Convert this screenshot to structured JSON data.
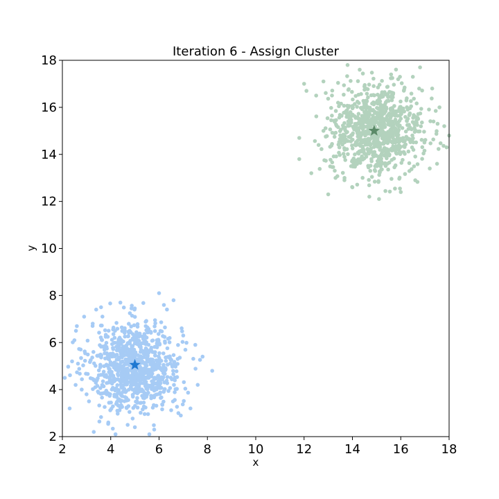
{
  "chart_data": {
    "type": "scatter",
    "title": "Iteration 6 - Assign Cluster",
    "xlabel": "x",
    "ylabel": "y",
    "xlim": [
      2,
      18
    ],
    "ylim": [
      2,
      18
    ],
    "xticks": [
      2,
      4,
      6,
      8,
      10,
      12,
      14,
      16,
      18
    ],
    "yticks": [
      2,
      4,
      6,
      8,
      10,
      12,
      14,
      16,
      18
    ],
    "grid": false,
    "legend": "none",
    "series": [
      {
        "color": "#a6cbf5",
        "center": [
          5,
          5
        ],
        "spread": 0.95,
        "count": 900,
        "centroid": [
          5.0,
          5.05
        ],
        "centroid_color": "#1f78d1",
        "points": [
          [
            2.1,
            4.5
          ],
          [
            2.3,
            3.2
          ],
          [
            2.4,
            5.2
          ],
          [
            2.5,
            6.1
          ],
          [
            2.6,
            6.7
          ],
          [
            2.9,
            7.1
          ],
          [
            3.1,
            3.5
          ],
          [
            3.3,
            2.2
          ],
          [
            3.4,
            7.4
          ],
          [
            3.6,
            7.5
          ],
          [
            3.9,
            2.6
          ],
          [
            4.2,
            2.1
          ],
          [
            4.4,
            7.7
          ],
          [
            5.0,
            2.4
          ],
          [
            5.6,
            2.1
          ],
          [
            6.0,
            8.1
          ],
          [
            6.2,
            7.6
          ],
          [
            6.6,
            7.8
          ],
          [
            7.5,
            5.9
          ],
          [
            7.8,
            5.4
          ],
          [
            8.2,
            4.8
          ],
          [
            7.3,
            3.2
          ],
          [
            6.8,
            3.0
          ],
          [
            7.0,
            6.3
          ],
          [
            7.6,
            4.2
          ],
          [
            3.0,
            3.8
          ],
          [
            2.8,
            4.0
          ],
          [
            6.9,
            2.9
          ],
          [
            4.7,
            2.5
          ],
          [
            5.8,
            2.3
          ]
        ]
      },
      {
        "color": "#b3d2bd",
        "center": [
          15,
          15
        ],
        "spread": 0.95,
        "count": 900,
        "centroid": [
          14.9,
          15.0
        ],
        "centroid_color": "#5b8a68",
        "points": [
          [
            11.8,
            13.8
          ],
          [
            11.8,
            14.7
          ],
          [
            12.0,
            17.0
          ],
          [
            12.1,
            16.7
          ],
          [
            12.5,
            16.5
          ],
          [
            12.8,
            17.1
          ],
          [
            13.0,
            12.3
          ],
          [
            13.8,
            17.8
          ],
          [
            14.0,
            12.6
          ],
          [
            14.3,
            17.6
          ],
          [
            14.7,
            12.2
          ],
          [
            15.1,
            12.1
          ],
          [
            15.6,
            17.4
          ],
          [
            16.0,
            12.4
          ],
          [
            16.5,
            17.3
          ],
          [
            16.8,
            17.7
          ],
          [
            17.3,
            16.8
          ],
          [
            17.6,
            16.0
          ],
          [
            17.9,
            14.3
          ],
          [
            18.0,
            14.8
          ],
          [
            17.5,
            13.6
          ],
          [
            17.2,
            13.4
          ],
          [
            12.8,
            15.0
          ],
          [
            12.6,
            14.4
          ],
          [
            13.3,
            13.0
          ],
          [
            16.6,
            12.9
          ],
          [
            12.3,
            13.2
          ],
          [
            17.8,
            15.2
          ]
        ]
      }
    ]
  }
}
